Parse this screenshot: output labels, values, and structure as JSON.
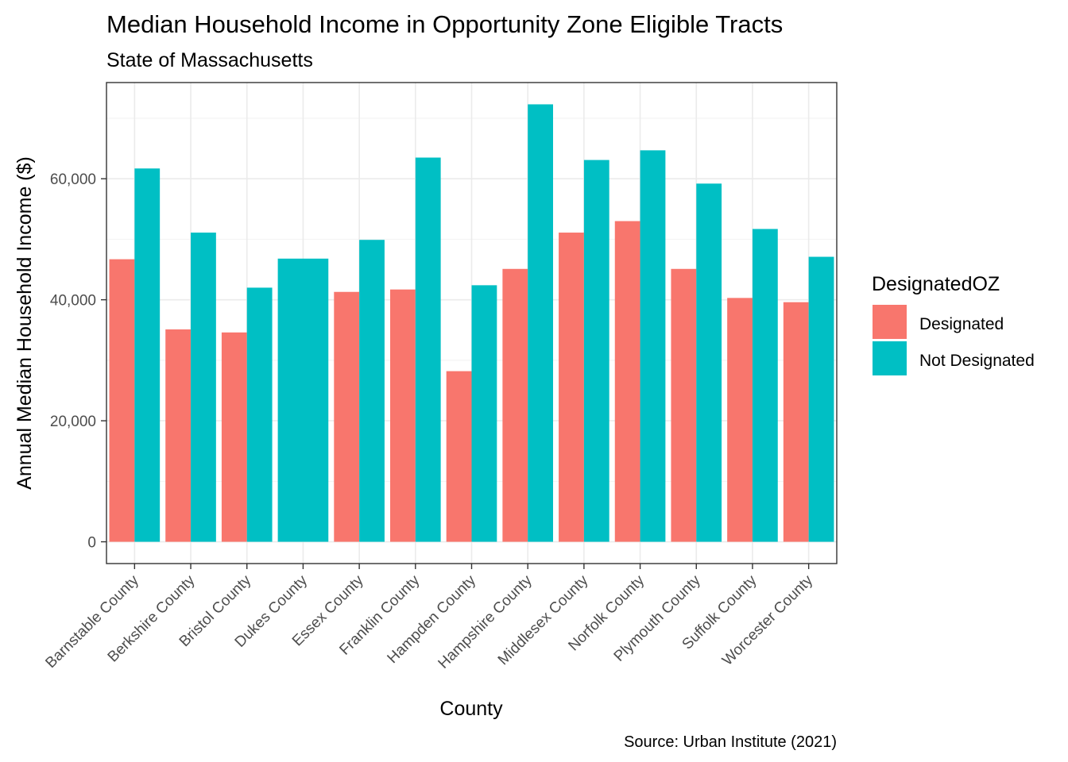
{
  "chart_data": {
    "type": "bar",
    "title": "Median Household Income in Opportunity Zone Eligible Tracts",
    "subtitle": "State of Massachusetts",
    "xlabel": "County",
    "ylabel": "Annual Median Household Income ($)",
    "caption": "Source: Urban Institute (2021)",
    "categories": [
      "Barnstable County",
      "Berkshire County",
      "Bristol County",
      "Dukes County",
      "Essex County",
      "Franklin County",
      "Hampden County",
      "Hampshire County",
      "Middlesex County",
      "Norfolk County",
      "Plymouth County",
      "Suffolk County",
      "Worcester County"
    ],
    "legend": {
      "title": "DesignatedOZ",
      "placement": "right"
    },
    "series": [
      {
        "name": "Designated",
        "color": "#F8766D",
        "values": [
          46700,
          35100,
          34600,
          null,
          41300,
          41700,
          28200,
          45100,
          51100,
          53000,
          45100,
          40300,
          39600
        ]
      },
      {
        "name": "Not Designated",
        "color": "#00BFC4",
        "values": [
          61700,
          51100,
          42000,
          46800,
          49900,
          63500,
          42400,
          72300,
          63100,
          64700,
          59200,
          51700,
          47100
        ]
      }
    ],
    "ylim": [
      -3600,
      75900
    ],
    "yticks": [
      0,
      20000,
      40000,
      60000
    ],
    "ytick_labels": [
      "0",
      "20,000",
      "40,000",
      "60,000"
    ],
    "grid": true,
    "theme": "bw"
  }
}
